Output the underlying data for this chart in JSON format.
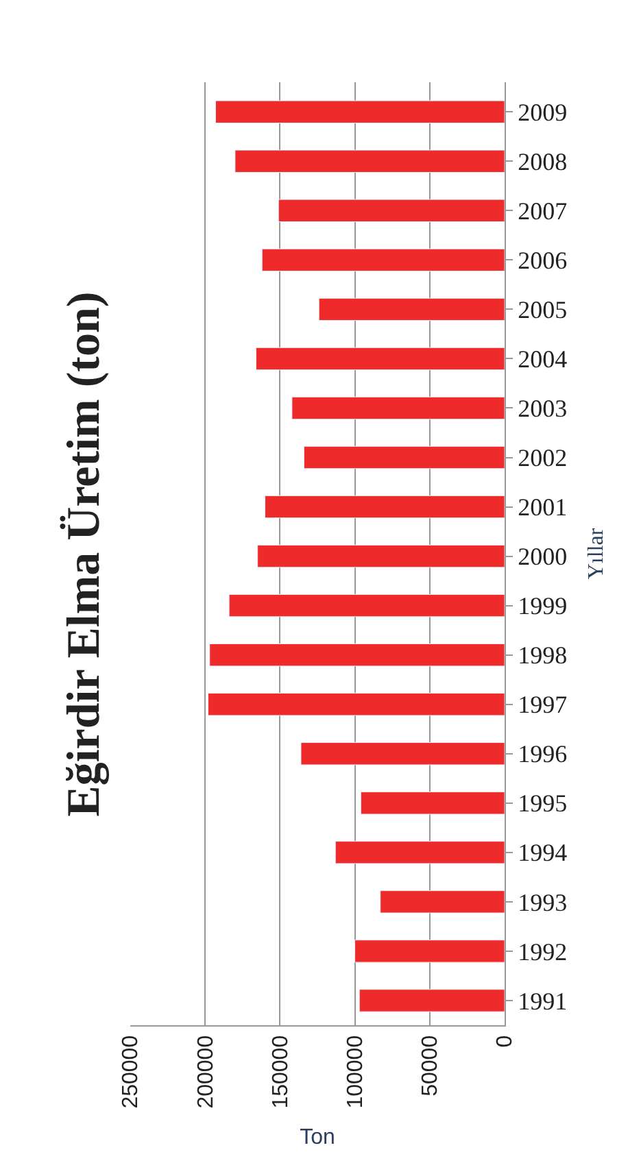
{
  "chart_data": {
    "type": "bar",
    "orientation": "horizontal",
    "title": "Eğirdir Elma Üretim (ton)",
    "xlabel": "Ton",
    "ylabel": "Yıllar",
    "categories": [
      "2009",
      "2008",
      "2007",
      "2006",
      "2005",
      "2004",
      "2003",
      "2002",
      "2001",
      "2000",
      "1999",
      "1998",
      "1997",
      "1996",
      "1995",
      "1994",
      "1993",
      "1992",
      "1991"
    ],
    "values": [
      193000,
      180000,
      151000,
      162000,
      124000,
      166000,
      142000,
      134000,
      160000,
      165000,
      184000,
      197000,
      198000,
      136000,
      96000,
      113000,
      83000,
      100000,
      97000
    ],
    "color": "#ee2a2a",
    "xlim": [
      250000,
      0
    ],
    "xticks": [
      250000,
      200000,
      150000,
      100000,
      50000,
      0
    ],
    "grid": "x",
    "legend": false
  }
}
